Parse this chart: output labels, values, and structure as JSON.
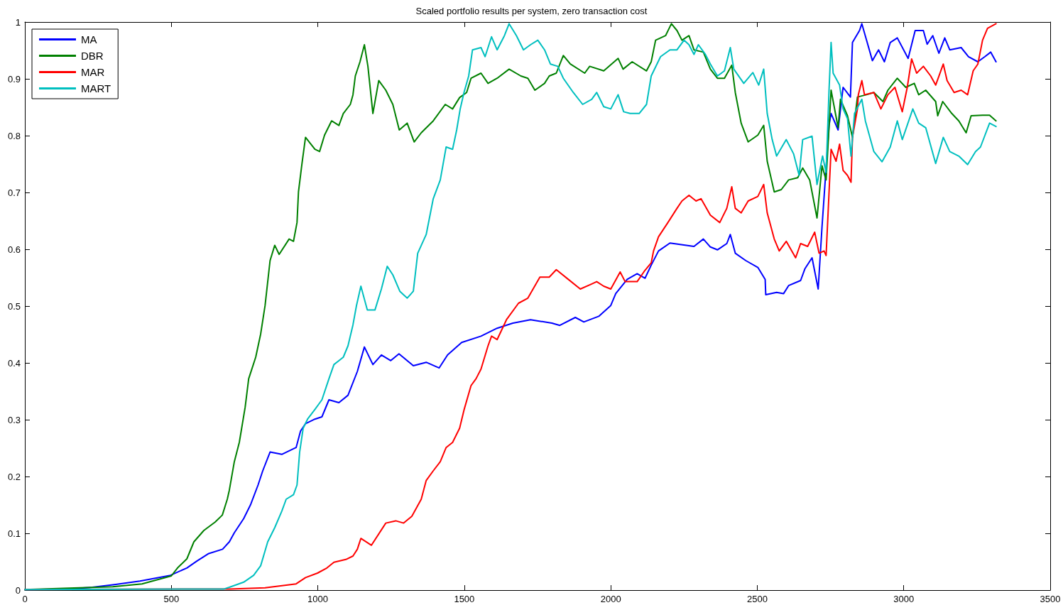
{
  "chart_data": {
    "type": "line",
    "title": "Scaled portfolio results per system, zero transaction cost",
    "xlim": [
      0,
      3500
    ],
    "xticks": [
      0,
      500,
      1000,
      1500,
      2000,
      2500,
      3000,
      3500
    ],
    "ylim": [
      0,
      1
    ],
    "yticks": [
      0,
      0.1,
      0.2,
      0.3,
      0.4,
      0.5,
      0.6,
      0.7,
      0.8,
      0.9,
      1
    ],
    "legend": "top left",
    "line_style": "solid",
    "series": [
      {
        "name": "MA",
        "color": "#0000ff",
        "x": [
          0,
          150,
          230,
          310,
          393,
          497,
          553,
          587,
          626,
          675,
          698,
          715,
          747,
          771,
          796,
          812,
          837,
          877,
          926,
          941,
          958,
          990,
          1014,
          1038,
          1072,
          1103,
          1135,
          1159,
          1188,
          1217,
          1249,
          1277,
          1326,
          1370,
          1414,
          1443,
          1491,
          1557,
          1612,
          1666,
          1726,
          1799,
          1826,
          1879,
          1908,
          1959,
          2000,
          2017,
          2056,
          2090,
          2117,
          2138,
          2163,
          2202,
          2284,
          2316,
          2340,
          2364,
          2396,
          2408,
          2425,
          2461,
          2502,
          2527,
          2529,
          2566,
          2590,
          2607,
          2648,
          2663,
          2687,
          2708,
          2721,
          2745,
          2752,
          2776,
          2793,
          2818,
          2825,
          2849,
          2857,
          2873,
          2893,
          2914,
          2934,
          2954,
          2978,
          3015,
          3039,
          3067,
          3080,
          3099,
          3120,
          3140,
          3157,
          3196,
          3221,
          3253,
          3277,
          3297,
          3315
        ],
        "values": [
          0.001,
          0.002,
          0.005,
          0.01,
          0.016,
          0.026,
          0.039,
          0.051,
          0.064,
          0.072,
          0.085,
          0.101,
          0.126,
          0.151,
          0.185,
          0.21,
          0.243,
          0.239,
          0.251,
          0.28,
          0.293,
          0.301,
          0.305,
          0.335,
          0.33,
          0.343,
          0.385,
          0.428,
          0.397,
          0.414,
          0.404,
          0.416,
          0.395,
          0.401,
          0.391,
          0.414,
          0.436,
          0.447,
          0.461,
          0.47,
          0.476,
          0.47,
          0.466,
          0.48,
          0.472,
          0.482,
          0.501,
          0.522,
          0.547,
          0.557,
          0.549,
          0.572,
          0.597,
          0.611,
          0.605,
          0.618,
          0.604,
          0.599,
          0.61,
          0.626,
          0.593,
          0.58,
          0.568,
          0.547,
          0.52,
          0.524,
          0.522,
          0.536,
          0.545,
          0.566,
          0.585,
          0.53,
          0.639,
          0.818,
          0.839,
          0.81,
          0.885,
          0.868,
          0.964,
          0.985,
          0.997,
          0.968,
          0.932,
          0.951,
          0.93,
          0.964,
          0.972,
          0.936,
          0.985,
          0.985,
          0.961,
          0.976,
          0.945,
          0.972,
          0.951,
          0.955,
          0.939,
          0.93,
          0.939,
          0.947,
          0.93
        ]
      },
      {
        "name": "DBR",
        "color": "#008000",
        "x": [
          0,
          300,
          400,
          500,
          521,
          553,
          577,
          611,
          650,
          674,
          691,
          698,
          715,
          732,
          752,
          764,
          788,
          805,
          820,
          837,
          853,
          868,
          902,
          917,
          929,
          934,
          946,
          958,
          990,
          1006,
          1023,
          1047,
          1072,
          1087,
          1111,
          1120,
          1128,
          1144,
          1159,
          1171,
          1188,
          1208,
          1232,
          1256,
          1278,
          1305,
          1329,
          1353,
          1394,
          1435,
          1460,
          1484,
          1508,
          1523,
          1557,
          1581,
          1612,
          1653,
          1693,
          1717,
          1741,
          1774,
          1790,
          1814,
          1838,
          1862,
          1911,
          1928,
          1976,
          2025,
          2042,
          2073,
          2122,
          2138,
          2153,
          2187,
          2207,
          2226,
          2243,
          2267,
          2284,
          2316,
          2340,
          2364,
          2388,
          2413,
          2425,
          2445,
          2469,
          2502,
          2522,
          2534,
          2558,
          2582,
          2607,
          2638,
          2655,
          2679,
          2704,
          2721,
          2735,
          2752,
          2776,
          2784,
          2808,
          2825,
          2842,
          2873,
          2898,
          2929,
          2946,
          2978,
          3007,
          3036,
          3051,
          3075,
          3109,
          3116,
          3133,
          3164,
          3188,
          3213,
          3230,
          3269,
          3293,
          3315
        ],
        "values": [
          0.001,
          0.006,
          0.011,
          0.025,
          0.039,
          0.055,
          0.085,
          0.105,
          0.12,
          0.132,
          0.16,
          0.176,
          0.226,
          0.26,
          0.322,
          0.372,
          0.41,
          0.451,
          0.501,
          0.58,
          0.607,
          0.591,
          0.618,
          0.614,
          0.647,
          0.701,
          0.751,
          0.797,
          0.776,
          0.772,
          0.801,
          0.826,
          0.818,
          0.839,
          0.855,
          0.872,
          0.905,
          0.93,
          0.96,
          0.922,
          0.839,
          0.897,
          0.88,
          0.855,
          0.81,
          0.822,
          0.789,
          0.805,
          0.826,
          0.855,
          0.847,
          0.867,
          0.876,
          0.901,
          0.91,
          0.892,
          0.901,
          0.917,
          0.905,
          0.901,
          0.88,
          0.892,
          0.905,
          0.91,
          0.941,
          0.926,
          0.91,
          0.922,
          0.914,
          0.936,
          0.917,
          0.93,
          0.914,
          0.93,
          0.968,
          0.976,
          0.997,
          0.985,
          0.968,
          0.976,
          0.951,
          0.947,
          0.917,
          0.901,
          0.901,
          0.924,
          0.876,
          0.822,
          0.789,
          0.801,
          0.818,
          0.755,
          0.701,
          0.705,
          0.722,
          0.726,
          0.743,
          0.722,
          0.655,
          0.747,
          0.722,
          0.88,
          0.814,
          0.864,
          0.835,
          0.797,
          0.868,
          0.872,
          0.876,
          0.86,
          0.88,
          0.901,
          0.885,
          0.892,
          0.872,
          0.88,
          0.86,
          0.835,
          0.86,
          0.839,
          0.826,
          0.805,
          0.835,
          0.836,
          0.836,
          0.826
        ]
      },
      {
        "name": "MAR",
        "color": "#ff0000",
        "x": [
          0,
          700,
          820,
          926,
          958,
          999,
          1031,
          1055,
          1096,
          1120,
          1135,
          1147,
          1183,
          1232,
          1266,
          1293,
          1321,
          1353,
          1370,
          1394,
          1418,
          1438,
          1460,
          1484,
          1499,
          1523,
          1540,
          1557,
          1581,
          1593,
          1612,
          1644,
          1685,
          1717,
          1758,
          1790,
          1814,
          1855,
          1896,
          1935,
          1952,
          1976,
          2000,
          2032,
          2049,
          2090,
          2114,
          2138,
          2146,
          2163,
          2195,
          2226,
          2243,
          2267,
          2291,
          2308,
          2340,
          2372,
          2396,
          2413,
          2425,
          2445,
          2469,
          2502,
          2522,
          2534,
          2558,
          2575,
          2599,
          2631,
          2648,
          2672,
          2696,
          2711,
          2728,
          2735,
          2747,
          2752,
          2769,
          2781,
          2793,
          2808,
          2820,
          2825,
          2842,
          2845,
          2857,
          2866,
          2898,
          2922,
          2946,
          2970,
          2995,
          3012,
          3027,
          3044,
          3067,
          3092,
          3109,
          3135,
          3148,
          3172,
          3196,
          3218,
          3237,
          3253,
          3269,
          3286,
          3315
        ],
        "values": [
          0.001,
          0.002,
          0.004,
          0.011,
          0.022,
          0.03,
          0.039,
          0.049,
          0.054,
          0.06,
          0.072,
          0.091,
          0.079,
          0.118,
          0.122,
          0.118,
          0.13,
          0.16,
          0.193,
          0.21,
          0.226,
          0.251,
          0.26,
          0.285,
          0.317,
          0.36,
          0.372,
          0.389,
          0.43,
          0.447,
          0.441,
          0.476,
          0.505,
          0.514,
          0.551,
          0.551,
          0.564,
          0.547,
          0.53,
          0.539,
          0.543,
          0.535,
          0.53,
          0.56,
          0.543,
          0.543,
          0.561,
          0.576,
          0.597,
          0.622,
          0.647,
          0.672,
          0.685,
          0.695,
          0.685,
          0.689,
          0.66,
          0.647,
          0.672,
          0.71,
          0.672,
          0.664,
          0.685,
          0.693,
          0.714,
          0.664,
          0.618,
          0.597,
          0.614,
          0.585,
          0.61,
          0.605,
          0.63,
          0.593,
          0.597,
          0.589,
          0.722,
          0.776,
          0.755,
          0.785,
          0.739,
          0.73,
          0.718,
          0.797,
          0.847,
          0.872,
          0.897,
          0.872,
          0.876,
          0.847,
          0.872,
          0.885,
          0.842,
          0.885,
          0.935,
          0.91,
          0.922,
          0.905,
          0.889,
          0.926,
          0.897,
          0.876,
          0.88,
          0.872,
          0.914,
          0.926,
          0.968,
          0.989,
          0.997
        ]
      },
      {
        "name": "MART",
        "color": "#00bfbf",
        "x": [
          0,
          680,
          698,
          747,
          781,
          805,
          829,
          853,
          877,
          892,
          917,
          929,
          938,
          950,
          965,
          990,
          1014,
          1038,
          1055,
          1087,
          1103,
          1120,
          1132,
          1147,
          1169,
          1195,
          1217,
          1237,
          1256,
          1280,
          1305,
          1326,
          1341,
          1370,
          1394,
          1418,
          1438,
          1460,
          1474,
          1486,
          1499,
          1515,
          1528,
          1557,
          1571,
          1593,
          1612,
          1637,
          1653,
          1678,
          1702,
          1726,
          1751,
          1774,
          1794,
          1819,
          1838,
          1872,
          1904,
          1935,
          1952,
          1976,
          2000,
          2025,
          2044,
          2066,
          2097,
          2122,
          2138,
          2170,
          2202,
          2226,
          2250,
          2267,
          2284,
          2299,
          2323,
          2340,
          2364,
          2388,
          2408,
          2420,
          2454,
          2485,
          2505,
          2522,
          2534,
          2551,
          2566,
          2599,
          2624,
          2643,
          2655,
          2687,
          2704,
          2723,
          2735,
          2745,
          2752,
          2759,
          2781,
          2793,
          2808,
          2820,
          2832,
          2857,
          2869,
          2898,
          2926,
          2954,
          2978,
          2995,
          3031,
          3051,
          3075,
          3109,
          3135,
          3157,
          3188,
          3218,
          3245,
          3262,
          3293,
          3315
        ],
        "values": [
          0.001,
          0.002,
          0.005,
          0.014,
          0.026,
          0.043,
          0.085,
          0.11,
          0.139,
          0.16,
          0.168,
          0.185,
          0.243,
          0.285,
          0.301,
          0.318,
          0.335,
          0.372,
          0.397,
          0.41,
          0.43,
          0.467,
          0.501,
          0.535,
          0.493,
          0.493,
          0.53,
          0.57,
          0.555,
          0.526,
          0.514,
          0.526,
          0.593,
          0.626,
          0.689,
          0.722,
          0.78,
          0.776,
          0.81,
          0.847,
          0.876,
          0.905,
          0.951,
          0.955,
          0.939,
          0.974,
          0.951,
          0.976,
          0.997,
          0.976,
          0.951,
          0.96,
          0.968,
          0.951,
          0.926,
          0.922,
          0.901,
          0.876,
          0.855,
          0.864,
          0.876,
          0.851,
          0.847,
          0.872,
          0.842,
          0.839,
          0.839,
          0.855,
          0.905,
          0.939,
          0.951,
          0.951,
          0.968,
          0.96,
          0.943,
          0.96,
          0.943,
          0.926,
          0.905,
          0.914,
          0.955,
          0.917,
          0.892,
          0.911,
          0.889,
          0.917,
          0.839,
          0.793,
          0.764,
          0.793,
          0.768,
          0.73,
          0.793,
          0.799,
          0.714,
          0.764,
          0.735,
          0.88,
          0.964,
          0.91,
          0.889,
          0.847,
          0.83,
          0.764,
          0.839,
          0.864,
          0.826,
          0.772,
          0.754,
          0.78,
          0.826,
          0.793,
          0.847,
          0.822,
          0.814,
          0.751,
          0.797,
          0.772,
          0.764,
          0.749,
          0.772,
          0.78,
          0.822,
          0.816
        ]
      }
    ]
  }
}
